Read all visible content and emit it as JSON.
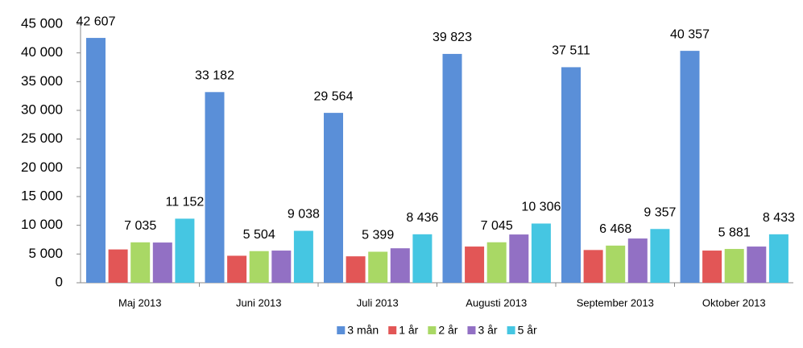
{
  "chart_data": {
    "type": "bar",
    "categories": [
      "Maj 2013",
      "Juni 2013",
      "Juli 2013",
      "Augusti 2013",
      "September 2013",
      "Oktober 2013"
    ],
    "series": [
      {
        "name": "3 mån",
        "color": "#5a8fd8",
        "values": [
          42607,
          33182,
          29564,
          39823,
          37511,
          40357
        ],
        "value_labels": [
          "42 607",
          "33 182",
          "29 564",
          "39 823",
          "37 511",
          "40 357"
        ]
      },
      {
        "name": "1 år",
        "color": "#e25656",
        "values": [
          5800,
          4700,
          4600,
          6300,
          5700,
          5600
        ]
      },
      {
        "name": "2 år",
        "color": "#a9d865",
        "values": [
          7035,
          5504,
          5399,
          7045,
          6468,
          5881
        ],
        "value_labels": [
          "7 035",
          "5 504",
          "5 399",
          "7 045",
          "6 468",
          "5 881"
        ]
      },
      {
        "name": "3 år",
        "color": "#9270c4",
        "values": [
          7000,
          5600,
          6000,
          8400,
          7700,
          6300
        ]
      },
      {
        "name": "5 år",
        "color": "#45c6e2",
        "values": [
          11152,
          9038,
          8436,
          10306,
          9357,
          8433
        ],
        "value_labels": [
          "11 152",
          "9 038",
          "8 436",
          "10 306",
          "9 357",
          "8 433"
        ]
      }
    ],
    "ylim": [
      0,
      45000
    ],
    "yticks": [
      0,
      {
        "value": 5000,
        "label": "5 000"
      },
      {
        "value": 10000,
        "label": "10 000"
      },
      {
        "value": 15000,
        "label": "15 000"
      },
      {
        "value": 20000,
        "label": "20 000"
      },
      {
        "value": 25000,
        "label": "25 000"
      },
      {
        "value": 30000,
        "label": "30 000"
      },
      {
        "value": 35000,
        "label": "35 000"
      },
      {
        "value": 40000,
        "label": "40 000"
      },
      {
        "value": 45000,
        "label": "45 000"
      }
    ],
    "grid": false,
    "legend": "bottom"
  }
}
